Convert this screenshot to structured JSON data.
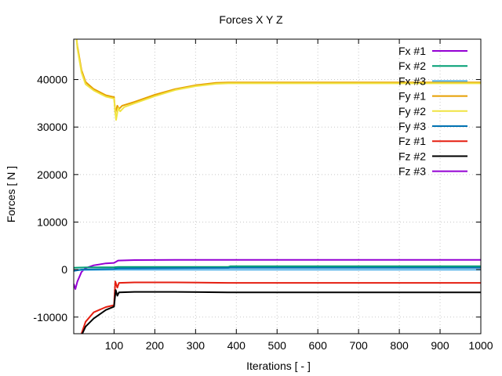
{
  "chart_data": {
    "type": "line",
    "title": "Forces X Y Z",
    "xlabel": "Iterations [ - ]",
    "ylabel": "Forces [ N ]",
    "xlim": [
      1,
      1000
    ],
    "ylim": [
      -13500,
      48500
    ],
    "xticks": [
      100,
      200,
      300,
      400,
      500,
      600,
      700,
      800,
      900,
      1000
    ],
    "yticks": [
      -10000,
      0,
      10000,
      20000,
      30000,
      40000
    ],
    "grid": true,
    "legend_position": "top-right",
    "series": [
      {
        "name": "Fx #1",
        "color": "#9400d3",
        "points": [
          [
            1,
            -3000
          ],
          [
            5,
            -4100
          ],
          [
            10,
            -2500
          ],
          [
            20,
            -500
          ],
          [
            30,
            300
          ],
          [
            50,
            900
          ],
          [
            80,
            1300
          ],
          [
            100,
            1400
          ],
          [
            110,
            1900
          ],
          [
            150,
            2000
          ],
          [
            250,
            2050
          ],
          [
            400,
            2050
          ],
          [
            1000,
            2050
          ]
        ]
      },
      {
        "name": "Fx #2",
        "color": "#009e73",
        "points": [
          [
            1,
            400
          ],
          [
            30,
            450
          ],
          [
            100,
            500
          ],
          [
            110,
            550
          ],
          [
            380,
            550
          ],
          [
            385,
            700
          ],
          [
            1000,
            700
          ]
        ]
      },
      {
        "name": "Fx #3",
        "color": "#56b4e9",
        "points": [
          [
            1,
            -100
          ],
          [
            100,
            -50
          ],
          [
            1000,
            -50
          ]
        ]
      },
      {
        "name": "Fy #1",
        "color": "#e69f00",
        "points": [
          [
            8,
            48500
          ],
          [
            10,
            47000
          ],
          [
            20,
            42000
          ],
          [
            30,
            39500
          ],
          [
            50,
            38000
          ],
          [
            80,
            36700
          ],
          [
            100,
            36300
          ],
          [
            103,
            33000
          ],
          [
            108,
            34500
          ],
          [
            112,
            33800
          ],
          [
            120,
            34500
          ],
          [
            150,
            35300
          ],
          [
            200,
            36800
          ],
          [
            250,
            38000
          ],
          [
            300,
            38800
          ],
          [
            350,
            39300
          ],
          [
            380,
            39400
          ],
          [
            1000,
            39400
          ]
        ]
      },
      {
        "name": "Fy #2",
        "color": "#f0e442",
        "points": [
          [
            8,
            48500
          ],
          [
            10,
            46500
          ],
          [
            20,
            41500
          ],
          [
            30,
            39000
          ],
          [
            50,
            37700
          ],
          [
            80,
            36400
          ],
          [
            100,
            36000
          ],
          [
            105,
            31500
          ],
          [
            110,
            34000
          ],
          [
            115,
            33300
          ],
          [
            125,
            34200
          ],
          [
            150,
            35000
          ],
          [
            200,
            36500
          ],
          [
            250,
            37800
          ],
          [
            300,
            38600
          ],
          [
            350,
            39100
          ],
          [
            380,
            39200
          ],
          [
            1000,
            39200
          ]
        ]
      },
      {
        "name": "Fy #3",
        "color": "#0072b2",
        "points": [
          [
            1,
            -300
          ],
          [
            20,
            0
          ],
          [
            100,
            150
          ],
          [
            110,
            250
          ],
          [
            380,
            350
          ],
          [
            385,
            400
          ],
          [
            1000,
            400
          ]
        ]
      },
      {
        "name": "Fz #1",
        "color": "#e51e10",
        "points": [
          [
            20,
            -13500
          ],
          [
            30,
            -11000
          ],
          [
            50,
            -9000
          ],
          [
            80,
            -7900
          ],
          [
            100,
            -7500
          ],
          [
            103,
            -2500
          ],
          [
            108,
            -3800
          ],
          [
            112,
            -2800
          ],
          [
            150,
            -2700
          ],
          [
            250,
            -2700
          ],
          [
            380,
            -2800
          ],
          [
            1000,
            -2800
          ]
        ]
      },
      {
        "name": "Fz #2",
        "color": "#000000",
        "points": [
          [
            22,
            -13500
          ],
          [
            30,
            -12000
          ],
          [
            50,
            -10300
          ],
          [
            80,
            -8500
          ],
          [
            100,
            -7800
          ],
          [
            104,
            -4300
          ],
          [
            108,
            -5500
          ],
          [
            112,
            -4800
          ],
          [
            150,
            -4700
          ],
          [
            250,
            -4700
          ],
          [
            380,
            -4800
          ],
          [
            1000,
            -4800
          ]
        ]
      },
      {
        "name": "Fz #3",
        "color": "#9400d3",
        "points": []
      }
    ]
  }
}
